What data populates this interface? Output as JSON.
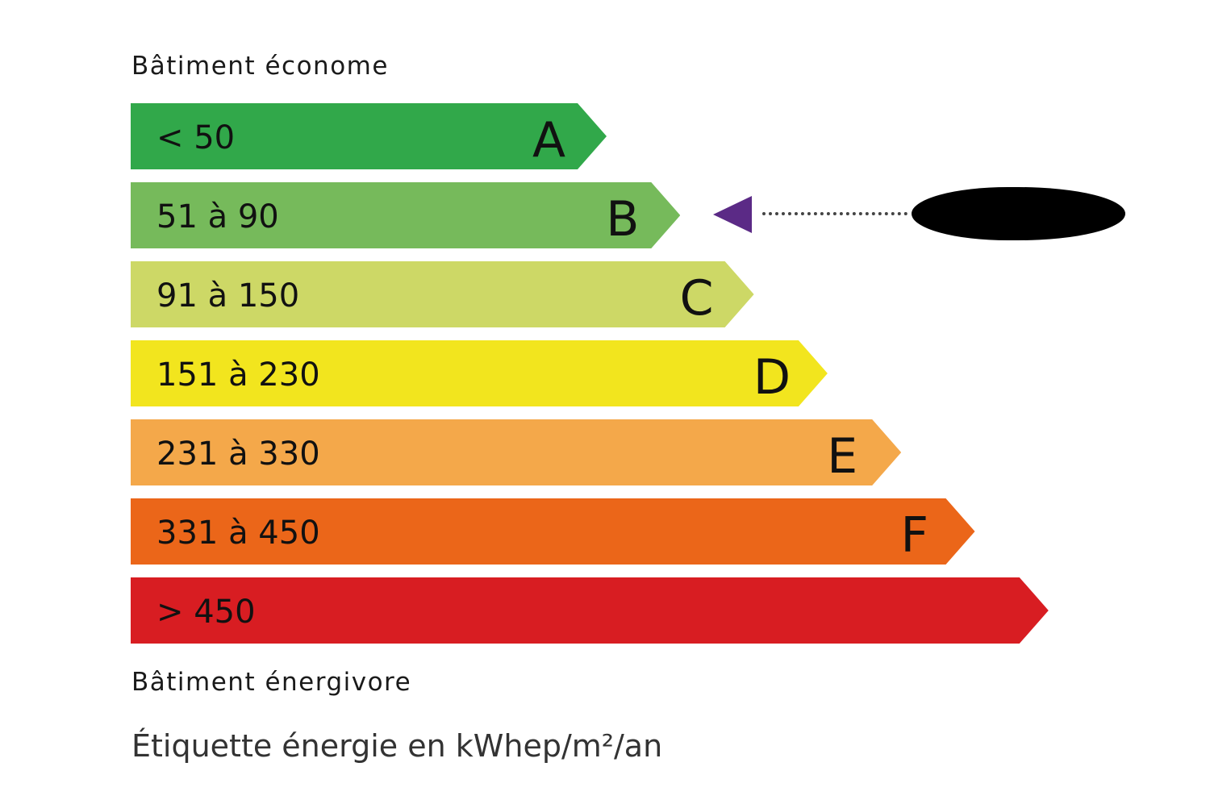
{
  "header": {
    "top_label": "Bâtiment économe",
    "bottom_label": "Bâtiment énergivore"
  },
  "footer": {
    "caption": "Étiquette énergie en kWhep/m²/an"
  },
  "classes": [
    {
      "range": "< 50",
      "letter": "A",
      "color": "#31a84a"
    },
    {
      "range": "51 à 90",
      "letter": "B",
      "color": "#76ba5b"
    },
    {
      "range": "91 à 150",
      "letter": "C",
      "color": "#cdd866"
    },
    {
      "range": "151 à 230",
      "letter": "D",
      "color": "#f2e51e"
    },
    {
      "range": "231 à 330",
      "letter": "E",
      "color": "#f4a84a"
    },
    {
      "range": "331 à 450",
      "letter": "F",
      "color": "#eb6619"
    },
    {
      "range": "> 450",
      "letter": "",
      "color": "#d81d22"
    }
  ],
  "indicator": {
    "class": "B",
    "color": "#5b2a86",
    "value_redacted": true
  }
}
